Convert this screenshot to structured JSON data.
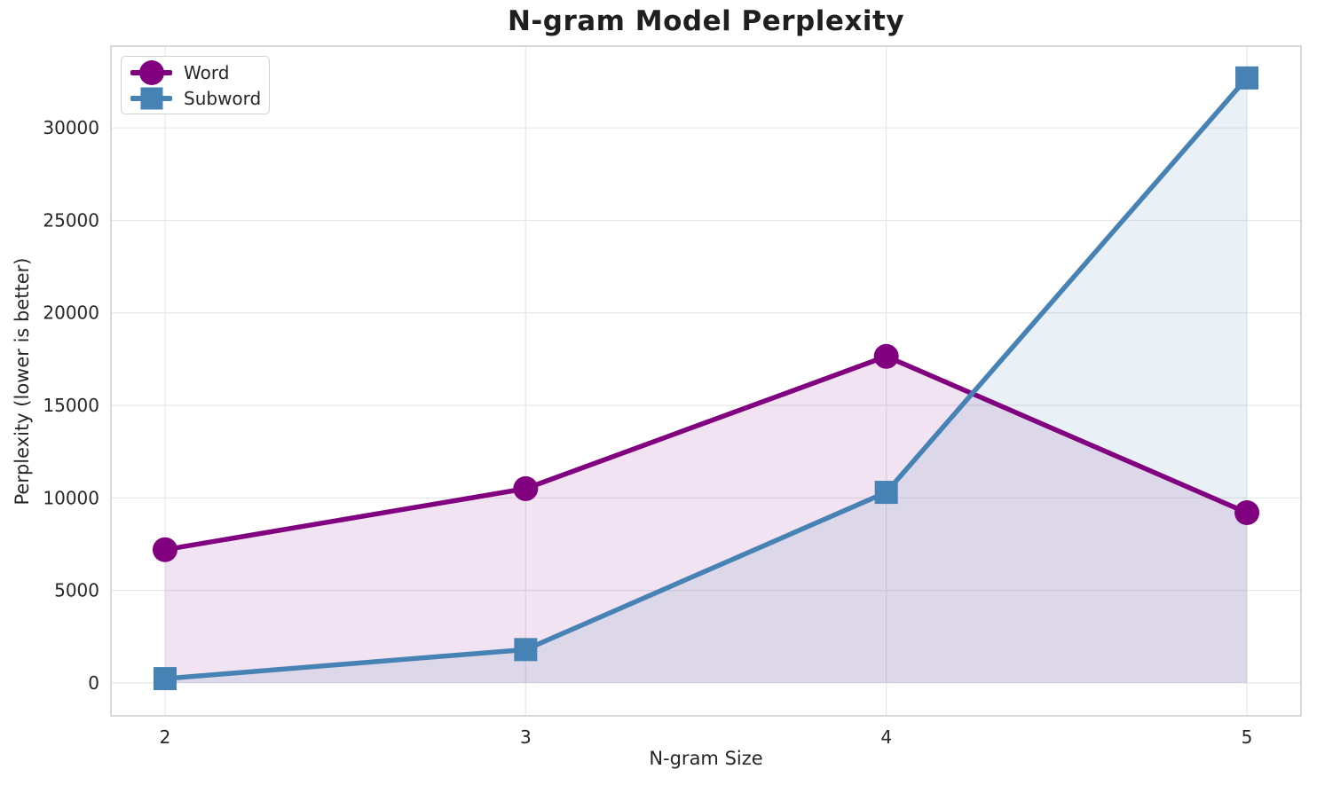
{
  "chart_data": {
    "type": "line",
    "title": "N-gram Model Perplexity",
    "xlabel": "N-gram Size",
    "ylabel": "Perplexity (lower is better)",
    "x": [
      2,
      3,
      4,
      5
    ],
    "xticklabels": [
      "2",
      "3",
      "4",
      "5"
    ],
    "yticks": [
      0,
      5000,
      10000,
      15000,
      20000,
      25000,
      30000
    ],
    "yticklabels": [
      "0",
      "5000",
      "10000",
      "15000",
      "20000",
      "25000",
      "30000"
    ],
    "xlim": [
      1.85,
      5.15
    ],
    "ylim": [
      -1780,
      34420
    ],
    "grid": true,
    "legend_position": "upper-left",
    "series": [
      {
        "name": "Word",
        "marker": "circle",
        "color": "#800080",
        "fill_color": "rgba(128,0,128,0.11)",
        "values": [
          7200,
          10500,
          17650,
          9200
        ]
      },
      {
        "name": "Subword",
        "marker": "square",
        "color": "#4682B4",
        "fill_color": "rgba(70,130,180,0.12)",
        "values": [
          230,
          1800,
          10300,
          32700
        ]
      }
    ]
  },
  "colors": {
    "grid": "#e7e7e7",
    "spine": "#cccccc",
    "text": "#262626",
    "title": "#1f1f1f",
    "background": "#ffffff"
  }
}
